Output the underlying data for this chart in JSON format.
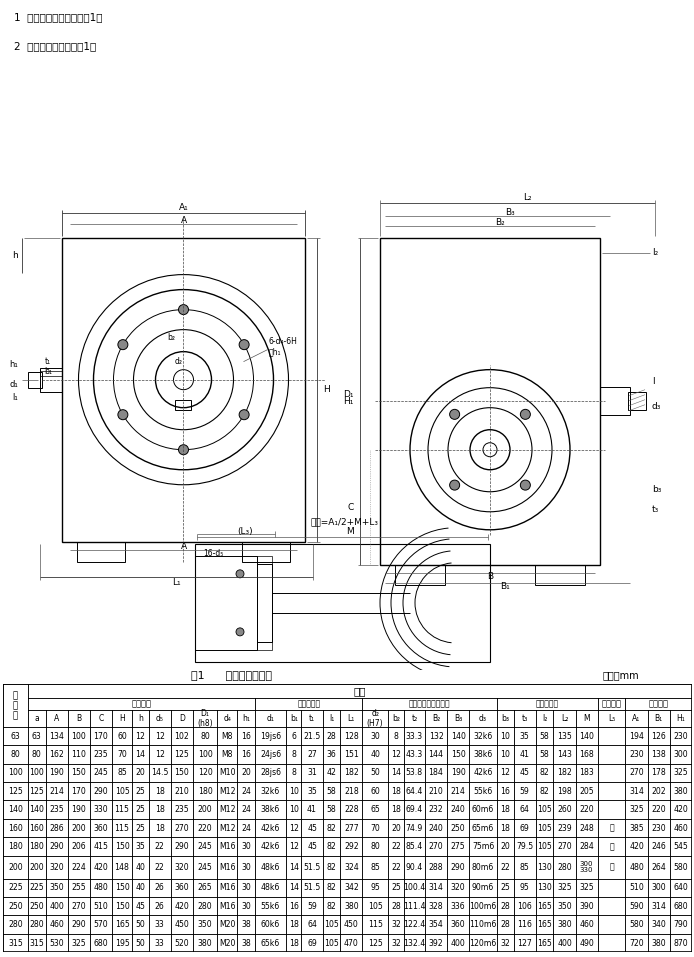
{
  "title_notes": [
    "1  减速器的外形结构见图1。",
    "2  减速器安装尺寸见表1。"
  ],
  "table_title": "表1      减速器外形尺寸",
  "table_unit": "单位：mm",
  "rows": [
    [
      "63",
      "63",
      "134",
      "100",
      "170",
      "60",
      "12",
      "12",
      "102",
      "80",
      "M8",
      "16",
      "19js6",
      "6",
      "21.5",
      "28",
      "128",
      "30",
      "8",
      "33.3",
      "132",
      "140",
      "32k6",
      "10",
      "35",
      "58",
      "135",
      "140",
      "",
      "194",
      "126",
      "230"
    ],
    [
      "80",
      "80",
      "162",
      "110",
      "235",
      "70",
      "14",
      "12",
      "125",
      "100",
      "M8",
      "16",
      "24js6",
      "8",
      "27",
      "36",
      "151",
      "40",
      "12",
      "43.3",
      "144",
      "150",
      "38k6",
      "10",
      "41",
      "58",
      "143",
      "168",
      "",
      "230",
      "138",
      "300"
    ],
    [
      "100",
      "100",
      "190",
      "150",
      "245",
      "85",
      "20",
      "14.5",
      "150",
      "120",
      "M10",
      "20",
      "28js6",
      "8",
      "31",
      "42",
      "182",
      "50",
      "14",
      "53.8",
      "184",
      "190",
      "42k6",
      "12",
      "45",
      "82",
      "182",
      "183",
      "",
      "270",
      "178",
      "325"
    ],
    [
      "125",
      "125",
      "214",
      "170",
      "290",
      "105",
      "25",
      "18",
      "210",
      "180",
      "M12",
      "24",
      "32k6",
      "10",
      "35",
      "58",
      "218",
      "60",
      "18",
      "64.4",
      "210",
      "214",
      "55k6",
      "16",
      "59",
      "82",
      "198",
      "205",
      "",
      "314",
      "202",
      "380"
    ],
    [
      "140",
      "140",
      "235",
      "190",
      "330",
      "115",
      "25",
      "18",
      "235",
      "200",
      "M12",
      "24",
      "38k6",
      "10",
      "41",
      "58",
      "228",
      "65",
      "18",
      "69.4",
      "232",
      "240",
      "60m6",
      "18",
      "64",
      "105",
      "260",
      "220",
      "",
      "325",
      "220",
      "420"
    ],
    [
      "160",
      "160",
      "286",
      "200",
      "360",
      "115",
      "25",
      "18",
      "270",
      "220",
      "M12",
      "24",
      "42k6",
      "12",
      "45",
      "82",
      "277",
      "70",
      "20",
      "74.9",
      "240",
      "250",
      "65m6",
      "18",
      "69",
      "105",
      "239",
      "248",
      "按",
      "385",
      "230",
      "460"
    ],
    [
      "180",
      "180",
      "290",
      "206",
      "415",
      "150",
      "35",
      "22",
      "290",
      "245",
      "M16",
      "30",
      "42k6",
      "12",
      "45",
      "82",
      "292",
      "80",
      "22",
      "85.4",
      "270",
      "275",
      "75m6",
      "20",
      "79.5",
      "105",
      "270",
      "284",
      "电",
      "420",
      "246",
      "545"
    ],
    [
      "200",
      "200",
      "320",
      "224",
      "420",
      "148",
      "40",
      "22",
      "320",
      "245",
      "M16",
      "30",
      "48k6",
      "14",
      "51.5",
      "82",
      "324",
      "85",
      "22",
      "90.4",
      "288",
      "290",
      "80m6",
      "22",
      "85",
      "130",
      "280",
      "300\n330",
      "机",
      "480",
      "264",
      "580"
    ],
    [
      "225",
      "225",
      "350",
      "255",
      "480",
      "150",
      "40",
      "26",
      "360",
      "265",
      "M16",
      "30",
      "48k6",
      "14",
      "51.5",
      "82",
      "342",
      "95",
      "25",
      "100.4",
      "314",
      "320",
      "90m6",
      "25",
      "95",
      "130",
      "325",
      "325",
      "",
      "510",
      "300",
      "640"
    ],
    [
      "250",
      "250",
      "400",
      "270",
      "510",
      "150",
      "45",
      "26",
      "420",
      "280",
      "M16",
      "30",
      "55k6",
      "16",
      "59",
      "82",
      "380",
      "105",
      "28",
      "111.4",
      "328",
      "336",
      "100m6",
      "28",
      "106",
      "165",
      "350",
      "390",
      "",
      "590",
      "314",
      "680"
    ],
    [
      "280",
      "280",
      "460",
      "290",
      "570",
      "165",
      "50",
      "33",
      "450",
      "350",
      "M20",
      "38",
      "60k6",
      "18",
      "64",
      "105",
      "450",
      "115",
      "32",
      "122.4",
      "354",
      "360",
      "110m6",
      "28",
      "116",
      "165",
      "380",
      "460",
      "",
      "580",
      "340",
      "790"
    ],
    [
      "315",
      "315",
      "530",
      "325",
      "680",
      "195",
      "50",
      "33",
      "520",
      "380",
      "M20",
      "38",
      "65k6",
      "18",
      "69",
      "105",
      "470",
      "125",
      "32",
      "132.4",
      "392",
      "400",
      "120m6",
      "32",
      "127",
      "165",
      "400",
      "490",
      "",
      "720",
      "380",
      "870"
    ]
  ],
  "col_widths_raw": [
    1.1,
    0.8,
    1.0,
    1.0,
    1.0,
    0.9,
    0.75,
    1.0,
    1.0,
    1.1,
    0.9,
    0.8,
    1.4,
    0.7,
    0.95,
    0.8,
    1.0,
    1.15,
    0.72,
    0.95,
    1.0,
    1.0,
    1.25,
    0.75,
    1.0,
    0.8,
    1.0,
    1.0,
    1.25,
    1.0,
    1.0,
    1.0
  ],
  "bg_color": "#ffffff",
  "text_color": "#000000"
}
